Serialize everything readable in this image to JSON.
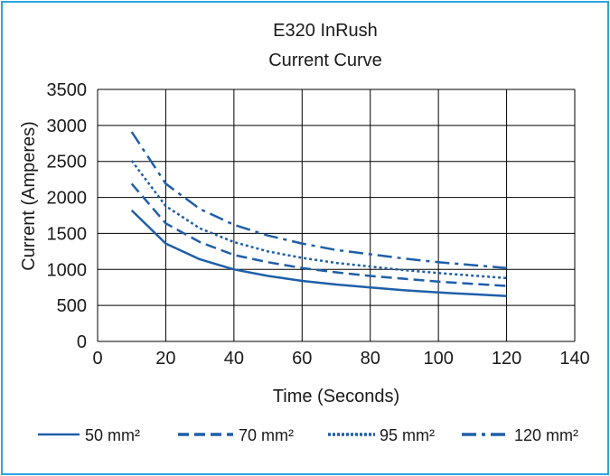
{
  "chart_data": {
    "type": "line",
    "title_line1": "E320 InRush",
    "title_line2": "Current Curve",
    "xlabel": "Time (Seconds)",
    "ylabel": "Current (Amperes)",
    "xlim": [
      0,
      140
    ],
    "ylim": [
      0,
      3500
    ],
    "xticks": [
      0,
      20,
      40,
      60,
      80,
      100,
      120,
      140
    ],
    "yticks": [
      0,
      500,
      1000,
      1500,
      2000,
      2500,
      3000,
      3500
    ],
    "grid": true,
    "legend_position": "bottom",
    "line_color": "#1f5fa8",
    "frame_color": "#29a7de",
    "x": [
      10,
      20,
      30,
      40,
      50,
      60,
      70,
      80,
      90,
      100,
      110,
      120
    ],
    "series": [
      {
        "name": "50 mm²",
        "style": "solid",
        "values": [
          1820,
          1360,
          1140,
          1000,
          910,
          840,
          790,
          750,
          710,
          680,
          655,
          630
        ]
      },
      {
        "name": "70 mm²",
        "style": "dashed",
        "values": [
          2190,
          1640,
          1380,
          1200,
          1100,
          1020,
          960,
          910,
          870,
          830,
          800,
          770
        ]
      },
      {
        "name": "95 mm²",
        "style": "dotted",
        "values": [
          2510,
          1880,
          1570,
          1380,
          1250,
          1160,
          1090,
          1040,
          990,
          950,
          915,
          880
        ]
      },
      {
        "name": "120 mm²",
        "style": "dashdot",
        "values": [
          2910,
          2190,
          1840,
          1620,
          1470,
          1360,
          1270,
          1210,
          1150,
          1100,
          1060,
          1020
        ]
      }
    ]
  }
}
